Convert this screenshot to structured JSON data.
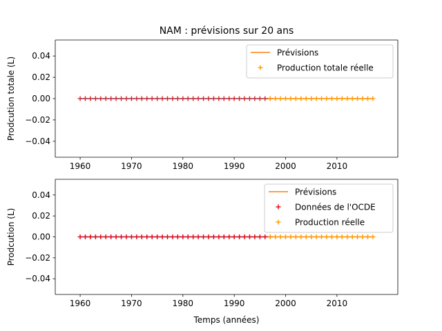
{
  "chart_data": [
    {
      "type": "line",
      "title": "NAM : prévisions sur 20 ans",
      "xlabel": "",
      "ylabel": "Prodcution totale (L)",
      "xlim": [
        1955.15,
        2021.85
      ],
      "ylim": [
        -0.055,
        0.055
      ],
      "xticks": [
        1960,
        1970,
        1980,
        1990,
        2000,
        2010
      ],
      "xtick_labels": [
        "1960",
        "1970",
        "1980",
        "1990",
        "2000",
        "2010"
      ],
      "yticks": [
        0.04,
        0.02,
        0.0,
        -0.02,
        -0.04
      ],
      "ytick_labels": [
        "0.04",
        "0.02",
        "0.00",
        "−0.02",
        "−0.04"
      ],
      "grid": false,
      "legend_position": "upper right",
      "series": [
        {
          "name": "",
          "kind": "line",
          "color": "#1f77b4",
          "x_start": 1960,
          "x_end": 1997,
          "value": 0
        },
        {
          "name": "Prévisions",
          "kind": "line",
          "color": "#ff7f0e",
          "x_start": 1997,
          "x_end": 2017,
          "value": 0
        },
        {
          "name": "",
          "kind": "marker",
          "marker": "+",
          "color": "#d62728",
          "x_start": 1960,
          "x_end": 1997,
          "value": 0
        },
        {
          "name": "Production totale réelle",
          "kind": "marker",
          "marker": "+",
          "color": "#ff9900",
          "x_start": 1997,
          "x_end": 2017,
          "value": 0
        }
      ],
      "legend": [
        {
          "label": "Prévisions",
          "kind": "line",
          "color": "#ff7f0e"
        },
        {
          "label": "Production totale réelle",
          "kind": "marker",
          "color": "#ff9900"
        }
      ]
    },
    {
      "type": "line",
      "title": "",
      "xlabel": "Temps (années)",
      "ylabel": "Prodcution (L)",
      "xlim": [
        1955.15,
        2021.85
      ],
      "ylim": [
        -0.055,
        0.055
      ],
      "xticks": [
        1960,
        1970,
        1980,
        1990,
        2000,
        2010
      ],
      "xtick_labels": [
        "1960",
        "1970",
        "1980",
        "1990",
        "2000",
        "2010"
      ],
      "yticks": [
        0.04,
        0.02,
        0.0,
        -0.02,
        -0.04
      ],
      "ytick_labels": [
        "0.04",
        "0.02",
        "0.00",
        "−0.02",
        "−0.04"
      ],
      "grid": false,
      "legend_position": "upper right",
      "series": [
        {
          "name": "",
          "kind": "line",
          "color": "#1f77b4",
          "x_start": 1960,
          "x_end": 1997,
          "value": 0
        },
        {
          "name": "Prévisions",
          "kind": "line",
          "color": "#ff7f0e",
          "x_start": 1997,
          "x_end": 2017,
          "value": 0
        },
        {
          "name": "Données de l'OCDE",
          "kind": "marker",
          "marker": "+",
          "color": "#e8000b",
          "x_start": 1960,
          "x_end": 1997,
          "value": 0
        },
        {
          "name": "Production réelle",
          "kind": "marker",
          "marker": "+",
          "color": "#ff9900",
          "x_start": 1997,
          "x_end": 2017,
          "value": 0
        }
      ],
      "legend": [
        {
          "label": "Prévisions",
          "kind": "line",
          "color": "#ff7f0e"
        },
        {
          "label": "Données de l'OCDE",
          "kind": "marker",
          "color": "#e8000b"
        },
        {
          "label": "Production réelle",
          "kind": "marker",
          "color": "#ff9900"
        }
      ]
    }
  ]
}
